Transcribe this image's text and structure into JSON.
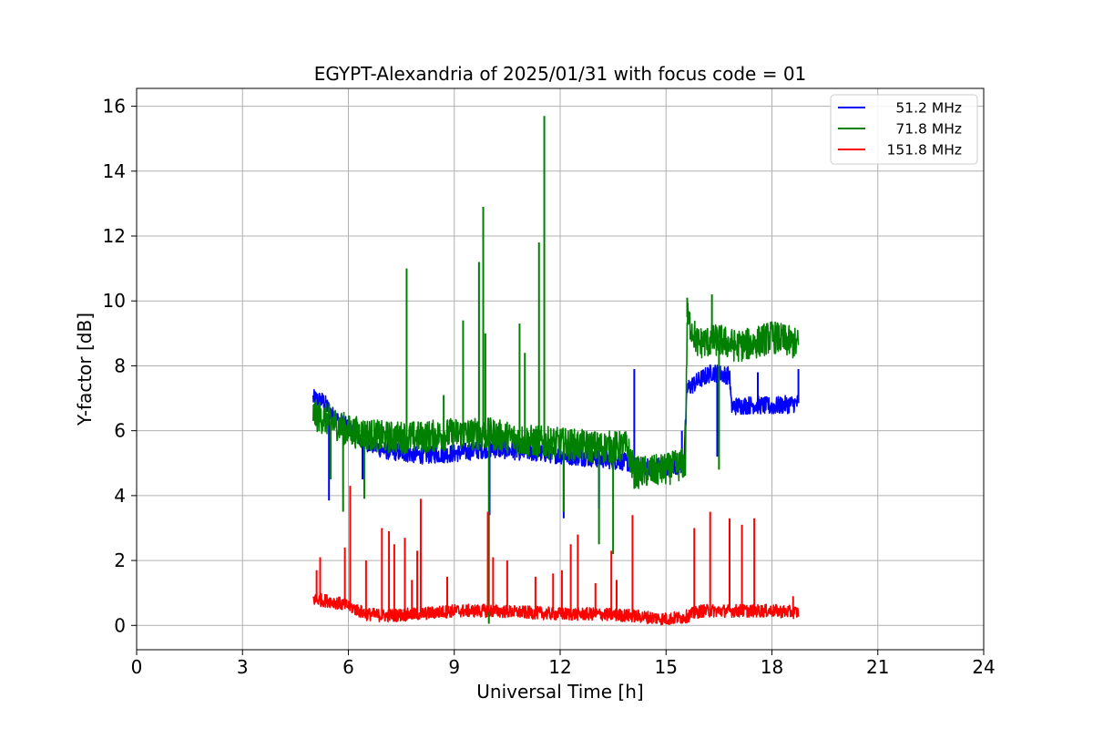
{
  "chart_data": {
    "type": "line",
    "title": "EGYPT-Alexandria of 2025/01/31 with focus code = 01",
    "xlabel": "Universal Time [h]",
    "ylabel": "Y-factor [dB]",
    "xlim": [
      0,
      24
    ],
    "ylim": [
      -0.75,
      16.55
    ],
    "xticks": [
      "0",
      "3",
      "6",
      "9",
      "12",
      "15",
      "18",
      "21",
      "24"
    ],
    "yticks": [
      "0",
      "2",
      "4",
      "6",
      "8",
      "10",
      "12",
      "14",
      "16"
    ],
    "grid": true,
    "legend_position": "top-right",
    "series": [
      {
        "name": "51.2 MHz",
        "color": "#0000ff",
        "noise": 0.28,
        "points": [
          [
            5.0,
            7.0
          ],
          [
            5.3,
            6.9
          ],
          [
            5.6,
            6.4
          ],
          [
            6.0,
            6.1
          ],
          [
            6.4,
            5.7
          ],
          [
            7.0,
            5.4
          ],
          [
            8.0,
            5.25
          ],
          [
            9.0,
            5.3
          ],
          [
            10.0,
            5.45
          ],
          [
            11.0,
            5.35
          ],
          [
            12.0,
            5.25
          ],
          [
            13.0,
            5.15
          ],
          [
            13.8,
            5.05
          ],
          [
            14.2,
            4.9
          ],
          [
            15.0,
            4.9
          ],
          [
            15.5,
            4.95
          ],
          [
            15.6,
            7.3
          ],
          [
            16.0,
            7.6
          ],
          [
            16.3,
            7.8
          ],
          [
            16.8,
            7.7
          ],
          [
            16.85,
            6.75
          ],
          [
            17.5,
            6.8
          ],
          [
            18.0,
            6.75
          ],
          [
            18.75,
            6.85
          ]
        ],
        "spikes": [
          [
            5.45,
            3.85
          ],
          [
            6.4,
            4.5
          ],
          [
            10.0,
            3.4
          ],
          [
            12.1,
            3.3
          ],
          [
            13.1,
            3.6
          ],
          [
            14.1,
            7.9
          ],
          [
            15.45,
            6.0
          ],
          [
            16.45,
            5.2
          ],
          [
            17.6,
            7.8
          ],
          [
            18.75,
            7.9
          ]
        ]
      },
      {
        "name": "71.8 MHz",
        "color": "#008000",
        "noise": 0.5,
        "points": [
          [
            5.0,
            6.5
          ],
          [
            5.5,
            6.3
          ],
          [
            6.0,
            6.0
          ],
          [
            6.5,
            5.9
          ],
          [
            7.0,
            5.8
          ],
          [
            8.0,
            5.8
          ],
          [
            9.0,
            5.9
          ],
          [
            10.0,
            5.9
          ],
          [
            11.0,
            5.7
          ],
          [
            12.0,
            5.6
          ],
          [
            13.0,
            5.5
          ],
          [
            13.9,
            5.5
          ],
          [
            14.1,
            4.7
          ],
          [
            15.0,
            4.8
          ],
          [
            15.55,
            5.0
          ],
          [
            15.6,
            9.5
          ],
          [
            15.9,
            8.7
          ],
          [
            16.5,
            8.8
          ],
          [
            17.0,
            8.6
          ],
          [
            17.5,
            8.7
          ],
          [
            18.0,
            8.9
          ],
          [
            18.75,
            8.65
          ]
        ],
        "spikes": [
          [
            5.5,
            4.5
          ],
          [
            5.85,
            3.5
          ],
          [
            6.45,
            3.9
          ],
          [
            7.65,
            11.0
          ],
          [
            8.7,
            7.1
          ],
          [
            9.25,
            9.4
          ],
          [
            9.7,
            11.2
          ],
          [
            9.82,
            12.9
          ],
          [
            9.88,
            9.0
          ],
          [
            9.98,
            0.05
          ],
          [
            10.85,
            9.3
          ],
          [
            11.0,
            8.4
          ],
          [
            11.4,
            11.8
          ],
          [
            11.55,
            15.7
          ],
          [
            12.1,
            3.5
          ],
          [
            13.1,
            2.5
          ],
          [
            13.5,
            2.2
          ],
          [
            15.6,
            10.1
          ],
          [
            16.3,
            10.2
          ],
          [
            16.5,
            4.8
          ]
        ]
      },
      {
        "name": "151.8 MHz",
        "color": "#ff0000",
        "noise": 0.2,
        "points": [
          [
            5.0,
            0.8
          ],
          [
            5.5,
            0.75
          ],
          [
            6.0,
            0.6
          ],
          [
            6.5,
            0.35
          ],
          [
            7.0,
            0.3
          ],
          [
            8.0,
            0.35
          ],
          [
            9.0,
            0.45
          ],
          [
            10.0,
            0.45
          ],
          [
            11.0,
            0.4
          ],
          [
            12.0,
            0.35
          ],
          [
            13.0,
            0.35
          ],
          [
            14.0,
            0.3
          ],
          [
            15.0,
            0.2
          ],
          [
            15.5,
            0.25
          ],
          [
            16.0,
            0.45
          ],
          [
            17.0,
            0.45
          ],
          [
            18.0,
            0.45
          ],
          [
            18.75,
            0.4
          ]
        ],
        "spikes": [
          [
            5.1,
            1.7
          ],
          [
            5.2,
            2.1
          ],
          [
            5.9,
            2.4
          ],
          [
            6.05,
            4.3
          ],
          [
            6.5,
            2.0
          ],
          [
            6.95,
            3.0
          ],
          [
            7.15,
            2.9
          ],
          [
            7.3,
            2.5
          ],
          [
            7.6,
            2.7
          ],
          [
            7.8,
            1.4
          ],
          [
            7.95,
            2.3
          ],
          [
            8.05,
            3.9
          ],
          [
            8.8,
            1.5
          ],
          [
            9.95,
            3.5
          ],
          [
            10.1,
            2.1
          ],
          [
            10.5,
            2.0
          ],
          [
            11.3,
            1.5
          ],
          [
            11.8,
            1.6
          ],
          [
            12.05,
            1.7
          ],
          [
            12.3,
            2.5
          ],
          [
            12.5,
            2.8
          ],
          [
            13.0,
            1.3
          ],
          [
            13.45,
            2.3
          ],
          [
            13.6,
            1.4
          ],
          [
            14.05,
            3.4
          ],
          [
            15.8,
            3.0
          ],
          [
            16.25,
            3.5
          ],
          [
            16.8,
            3.3
          ],
          [
            17.15,
            3.1
          ],
          [
            17.5,
            3.3
          ],
          [
            18.6,
            0.9
          ]
        ]
      }
    ]
  }
}
